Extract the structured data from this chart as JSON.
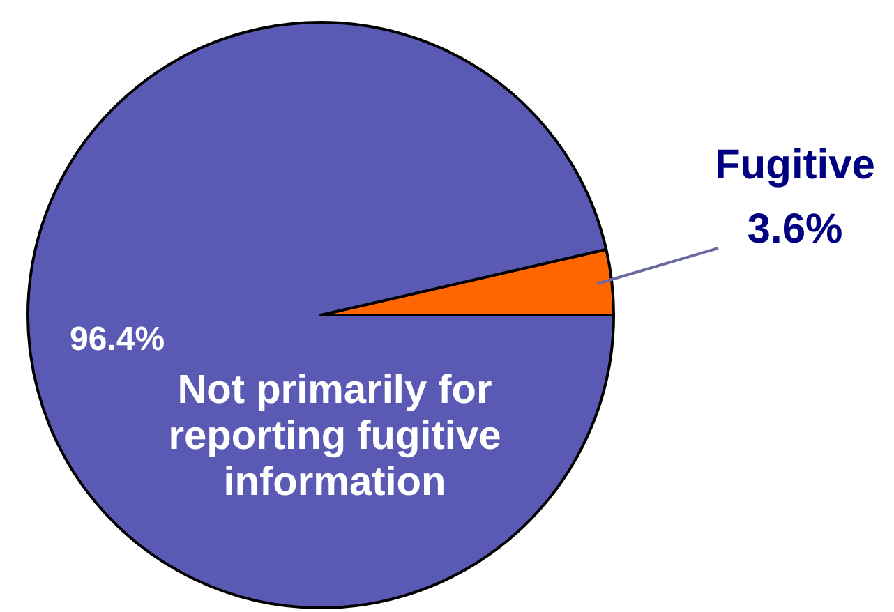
{
  "chart_data": {
    "type": "pie",
    "categories": [
      "Fugitive",
      "Not primarily for reporting fugitive information"
    ],
    "values": [
      3.6,
      96.4
    ],
    "colors": [
      "#ff6600",
      "#5a5ab4"
    ],
    "value_labels": [
      "3.6%",
      "96.4%"
    ]
  }
}
